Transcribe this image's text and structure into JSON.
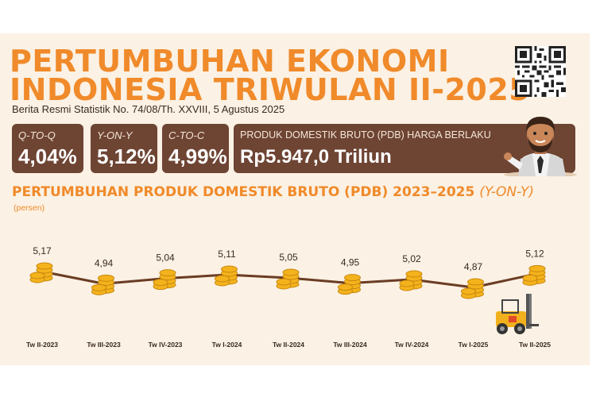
{
  "header": {
    "title_line1": "PERTUMBUHAN EKONOMI",
    "title_line2": "INDONESIA TRIWULAN II-2025",
    "subtitle": "Berita Resmi Statistik No. 74/08/Th. XXVIII, 5 Agustus 2025"
  },
  "indicators": [
    {
      "label": "Q-TO-Q",
      "value": "4,04%"
    },
    {
      "label": "Y-ON-Y",
      "value": "5,12%"
    },
    {
      "label": "C-TO-C",
      "value": "4,99%"
    }
  ],
  "pdb": {
    "label": "PRODUK DOMESTIK BRUTO (PDB) HARGA BERLAKU",
    "value": "Rp5.947,0 Triliun"
  },
  "colors": {
    "accent": "#f08a2a",
    "box": "#6e4433",
    "line": "#6a3c24",
    "coin": "#f4b21c",
    "background": "#fbf1e4"
  },
  "icons": [
    "qr-code-icon",
    "businessman-icon",
    "coin-stack-icon",
    "forklift-icon"
  ],
  "chart_data": {
    "type": "line",
    "title": "PERTUMBUHAN PRODUK DOMESTIK BRUTO (PDB) 2023–2025",
    "title_suffix": "(Y-ON-Y)",
    "ylabel": "(persen)",
    "categories": [
      "Tw II-2023",
      "Tw III-2023",
      "Tw IV-2023",
      "Tw I-2024",
      "Tw II-2024",
      "Tw III-2024",
      "Tw IV-2024",
      "Tw I-2025",
      "Tw II-2025"
    ],
    "values": [
      5.17,
      4.94,
      5.04,
      5.11,
      5.05,
      4.95,
      5.02,
      4.87,
      5.12
    ],
    "value_labels": [
      "5,17",
      "4,94",
      "5,04",
      "5,11",
      "5,05",
      "4,95",
      "5,02",
      "4,87",
      "5,12"
    ],
    "ylim": [
      4.6,
      5.4
    ],
    "grid": false,
    "legend": "none"
  }
}
